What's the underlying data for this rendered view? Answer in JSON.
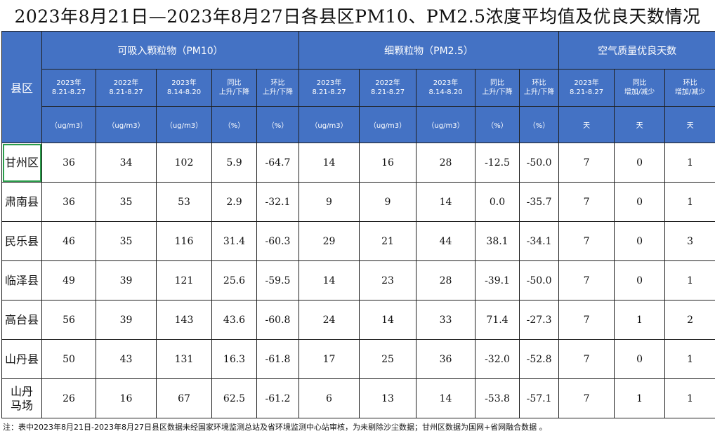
{
  "title": "2023年8月21日—2023年8月27日各县区PM10、PM2.5浓度平均值及优良天数情况",
  "header": {
    "county": "县区",
    "groups": [
      "可吸入颗粒物（PM10）",
      "细颗粒物（PM2.5）",
      "空气质量优良天数"
    ],
    "pm10_sub": [
      {
        "l1": "2023年",
        "l2": "8.21-8.27"
      },
      {
        "l1": "2022年",
        "l2": "8.21-8.27"
      },
      {
        "l1": "2023年",
        "l2": "8.14-8.20"
      },
      {
        "l1": "同比",
        "l2": "上升/下降"
      },
      {
        "l1": "环比",
        "l2": "上升/下降"
      }
    ],
    "pm25_sub": [
      {
        "l1": "2023年",
        "l2": "8.21-8.27"
      },
      {
        "l1": "2022年",
        "l2": "8.21-8.27"
      },
      {
        "l1": "2023年",
        "l2": "8.14-8.20"
      },
      {
        "l1": "同比",
        "l2": "上升/下降"
      },
      {
        "l1": "环比",
        "l2": "上升/下降"
      }
    ],
    "days_sub": [
      {
        "l1": "2023年",
        "l2": "8.21-8.27"
      },
      {
        "l1": "同比",
        "l2": "增加/减少"
      },
      {
        "l1": "环比",
        "l2": "增加/减少"
      }
    ],
    "units": [
      "（ug/m3）",
      "（ug/m3）",
      "（ug/m3）",
      "（%）",
      "（%）",
      "（ug/m3）",
      "（ug/m3）",
      "（ug/m3）",
      "（%）",
      "（%）",
      "天",
      "天",
      "天"
    ]
  },
  "rows": [
    {
      "county": "甘州区",
      "values": [
        "36",
        "34",
        "102",
        "5.9",
        "-64.7",
        "14",
        "16",
        "28",
        "-12.5",
        "-50.0",
        "7",
        "0",
        "1"
      ]
    },
    {
      "county": "肃南县",
      "values": [
        "36",
        "35",
        "53",
        "2.9",
        "-32.1",
        "9",
        "9",
        "14",
        "0.0",
        "-35.7",
        "7",
        "0",
        "1"
      ]
    },
    {
      "county": "民乐县",
      "values": [
        "46",
        "35",
        "116",
        "31.4",
        "-60.3",
        "29",
        "21",
        "44",
        "38.1",
        "-34.1",
        "7",
        "0",
        "3"
      ]
    },
    {
      "county": "临泽县",
      "values": [
        "49",
        "39",
        "121",
        "25.6",
        "-59.5",
        "14",
        "23",
        "28",
        "-39.1",
        "-50.0",
        "7",
        "0",
        "1"
      ]
    },
    {
      "county": "高台县",
      "values": [
        "56",
        "39",
        "143",
        "43.6",
        "-60.8",
        "24",
        "14",
        "33",
        "71.4",
        "-27.3",
        "7",
        "1",
        "2"
      ]
    },
    {
      "county": "山丹县",
      "values": [
        "50",
        "43",
        "131",
        "16.3",
        "-61.8",
        "17",
        "25",
        "36",
        "-32.0",
        "-52.8",
        "7",
        "0",
        "1"
      ]
    },
    {
      "county": "山丹\n马场",
      "values": [
        "26",
        "16",
        "67",
        "62.5",
        "-61.2",
        "6",
        "13",
        "14",
        "-53.8",
        "-57.1",
        "7",
        "1",
        "1"
      ]
    }
  ],
  "note": "注：表中2023年8月21日-2023年8月27日县区数据未经国家环境监测总站及省环境监测中心站审核，为未剔除沙尘数据；甘州区数据为国网+省网融合数据 。",
  "colors": {
    "header_bg": "#4472c4",
    "header_text": "#ffffff",
    "selection": "#2a9d4b"
  }
}
